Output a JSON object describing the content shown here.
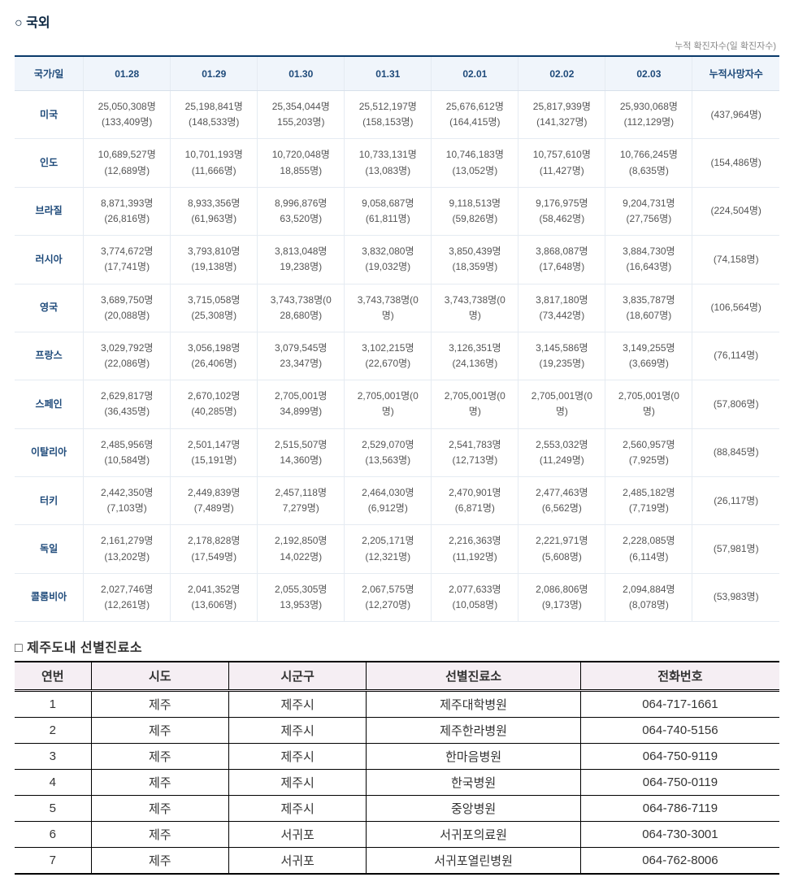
{
  "section1": {
    "title": "○ 국외",
    "note": "누적 확진자수(일 확진자수)",
    "headers": [
      "국가/일",
      "01.28",
      "01.29",
      "01.30",
      "01.31",
      "02.01",
      "02.02",
      "02.03",
      "누적사망자수"
    ],
    "rows": [
      {
        "country": "미국",
        "cells": [
          {
            "c": "25,050,308명",
            "d": "(133,409명)"
          },
          {
            "c": "25,198,841명",
            "d": "(148,533명)"
          },
          {
            "c": "25,354,044명",
            "d": "155,203명)"
          },
          {
            "c": "25,512,197명",
            "d": "(158,153명)"
          },
          {
            "c": "25,676,612명",
            "d": "(164,415명)"
          },
          {
            "c": "25,817,939명",
            "d": "(141,327명)"
          },
          {
            "c": "25,930,068명",
            "d": "(112,129명)"
          }
        ],
        "deaths": "(437,964명)"
      },
      {
        "country": "인도",
        "cells": [
          {
            "c": "10,689,527명",
            "d": "(12,689명)"
          },
          {
            "c": "10,701,193명",
            "d": "(11,666명)"
          },
          {
            "c": "10,720,048명",
            "d": "18,855명)"
          },
          {
            "c": "10,733,131명",
            "d": "(13,083명)"
          },
          {
            "c": "10,746,183명",
            "d": "(13,052명)"
          },
          {
            "c": "10,757,610명",
            "d": "(11,427명)"
          },
          {
            "c": "10,766,245명",
            "d": "(8,635명)"
          }
        ],
        "deaths": "(154,486명)"
      },
      {
        "country": "브라질",
        "cells": [
          {
            "c": "8,871,393명",
            "d": "(26,816명)"
          },
          {
            "c": "8,933,356명",
            "d": "(61,963명)"
          },
          {
            "c": "8,996,876명",
            "d": "63,520명)"
          },
          {
            "c": "9,058,687명",
            "d": "(61,811명)"
          },
          {
            "c": "9,118,513명",
            "d": "(59,826명)"
          },
          {
            "c": "9,176,975명",
            "d": "(58,462명)"
          },
          {
            "c": "9,204,731명",
            "d": "(27,756명)"
          }
        ],
        "deaths": "(224,504명)"
      },
      {
        "country": "러시아",
        "cells": [
          {
            "c": "3,774,672명",
            "d": "(17,741명)"
          },
          {
            "c": "3,793,810명",
            "d": "(19,138명)"
          },
          {
            "c": "3,813,048명",
            "d": "19,238명)"
          },
          {
            "c": "3,832,080명",
            "d": "(19,032명)"
          },
          {
            "c": "3,850,439명",
            "d": "(18,359명)"
          },
          {
            "c": "3,868,087명",
            "d": "(17,648명)"
          },
          {
            "c": "3,884,730명",
            "d": "(16,643명)"
          }
        ],
        "deaths": "(74,158명)"
      },
      {
        "country": "영국",
        "cells": [
          {
            "c": "3,689,750명",
            "d": "(20,088명)"
          },
          {
            "c": "3,715,058명",
            "d": "(25,308명)"
          },
          {
            "c": "3,743,738명(0",
            "d": "28,680명)"
          },
          {
            "c": "3,743,738명(0",
            "d": "명)"
          },
          {
            "c": "3,743,738명(0",
            "d": "명)"
          },
          {
            "c": "3,817,180명",
            "d": "(73,442명)"
          },
          {
            "c": "3,835,787명",
            "d": "(18,607명)"
          }
        ],
        "deaths": "(106,564명)"
      },
      {
        "country": "프랑스",
        "cells": [
          {
            "c": "3,029,792명",
            "d": "(22,086명)"
          },
          {
            "c": "3,056,198명",
            "d": "(26,406명)"
          },
          {
            "c": "3,079,545명",
            "d": "23,347명)"
          },
          {
            "c": "3,102,215명",
            "d": "(22,670명)"
          },
          {
            "c": "3,126,351명",
            "d": "(24,136명)"
          },
          {
            "c": "3,145,586명",
            "d": "(19,235명)"
          },
          {
            "c": "3,149,255명",
            "d": "(3,669명)"
          }
        ],
        "deaths": "(76,114명)"
      },
      {
        "country": "스페인",
        "cells": [
          {
            "c": "2,629,817명",
            "d": "(36,435명)"
          },
          {
            "c": "2,670,102명",
            "d": "(40,285명)"
          },
          {
            "c": "2,705,001명",
            "d": "34,899명)"
          },
          {
            "c": "2,705,001명(0",
            "d": "명)"
          },
          {
            "c": "2,705,001명(0",
            "d": "명)"
          },
          {
            "c": "2,705,001명(0",
            "d": "명)"
          },
          {
            "c": "2,705,001명(0",
            "d": "명)"
          }
        ],
        "deaths": "(57,806명)"
      },
      {
        "country": "이탈리아",
        "cells": [
          {
            "c": "2,485,956명",
            "d": "(10,584명)"
          },
          {
            "c": "2,501,147명",
            "d": "(15,191명)"
          },
          {
            "c": "2,515,507명",
            "d": "14,360명)"
          },
          {
            "c": "2,529,070명",
            "d": "(13,563명)"
          },
          {
            "c": "2,541,783명",
            "d": "(12,713명)"
          },
          {
            "c": "2,553,032명",
            "d": "(11,249명)"
          },
          {
            "c": "2,560,957명",
            "d": "(7,925명)"
          }
        ],
        "deaths": "(88,845명)"
      },
      {
        "country": "터키",
        "cells": [
          {
            "c": "2,442,350명",
            "d": "(7,103명)"
          },
          {
            "c": "2,449,839명",
            "d": "(7,489명)"
          },
          {
            "c": "2,457,118명",
            "d": "7,279명)"
          },
          {
            "c": "2,464,030명",
            "d": "(6,912명)"
          },
          {
            "c": "2,470,901명",
            "d": "(6,871명)"
          },
          {
            "c": "2,477,463명",
            "d": "(6,562명)"
          },
          {
            "c": "2,485,182명",
            "d": "(7,719명)"
          }
        ],
        "deaths": "(26,117명)"
      },
      {
        "country": "독일",
        "cells": [
          {
            "c": "2,161,279명",
            "d": "(13,202명)"
          },
          {
            "c": "2,178,828명",
            "d": "(17,549명)"
          },
          {
            "c": "2,192,850명",
            "d": "14,022명)"
          },
          {
            "c": "2,205,171명",
            "d": "(12,321명)"
          },
          {
            "c": "2,216,363명",
            "d": "(11,192명)"
          },
          {
            "c": "2,221,971명",
            "d": "(5,608명)"
          },
          {
            "c": "2,228,085명",
            "d": "(6,114명)"
          }
        ],
        "deaths": "(57,981명)"
      },
      {
        "country": "콜롬비아",
        "cells": [
          {
            "c": "2,027,746명",
            "d": "(12,261명)"
          },
          {
            "c": "2,041,352명",
            "d": "(13,606명)"
          },
          {
            "c": "2,055,305명",
            "d": "13,953명)"
          },
          {
            "c": "2,067,575명",
            "d": "(12,270명)"
          },
          {
            "c": "2,077,633명",
            "d": "(10,058명)"
          },
          {
            "c": "2,086,806명",
            "d": "(9,173명)"
          },
          {
            "c": "2,094,884명",
            "d": "(8,078명)"
          }
        ],
        "deaths": "(53,983명)"
      }
    ]
  },
  "section2": {
    "title": "□ 제주도내 선별진료소",
    "headers": [
      "연번",
      "시도",
      "시군구",
      "선별진료소",
      "전화번호"
    ],
    "rows": [
      [
        "1",
        "제주",
        "제주시",
        "제주대학병원",
        "064-717-1661"
      ],
      [
        "2",
        "제주",
        "제주시",
        "제주한라병원",
        "064-740-5156"
      ],
      [
        "3",
        "제주",
        "제주시",
        "한마음병원",
        "064-750-9119"
      ],
      [
        "4",
        "제주",
        "제주시",
        "한국병원",
        "064-750-0119"
      ],
      [
        "5",
        "제주",
        "제주시",
        "중앙병원",
        "064-786-7119"
      ],
      [
        "6",
        "제주",
        "서귀포",
        "서귀포의료원",
        "064-730-3001"
      ],
      [
        "7",
        "제주",
        "서귀포",
        "서귀포열린병원",
        "064-762-8006"
      ]
    ]
  }
}
